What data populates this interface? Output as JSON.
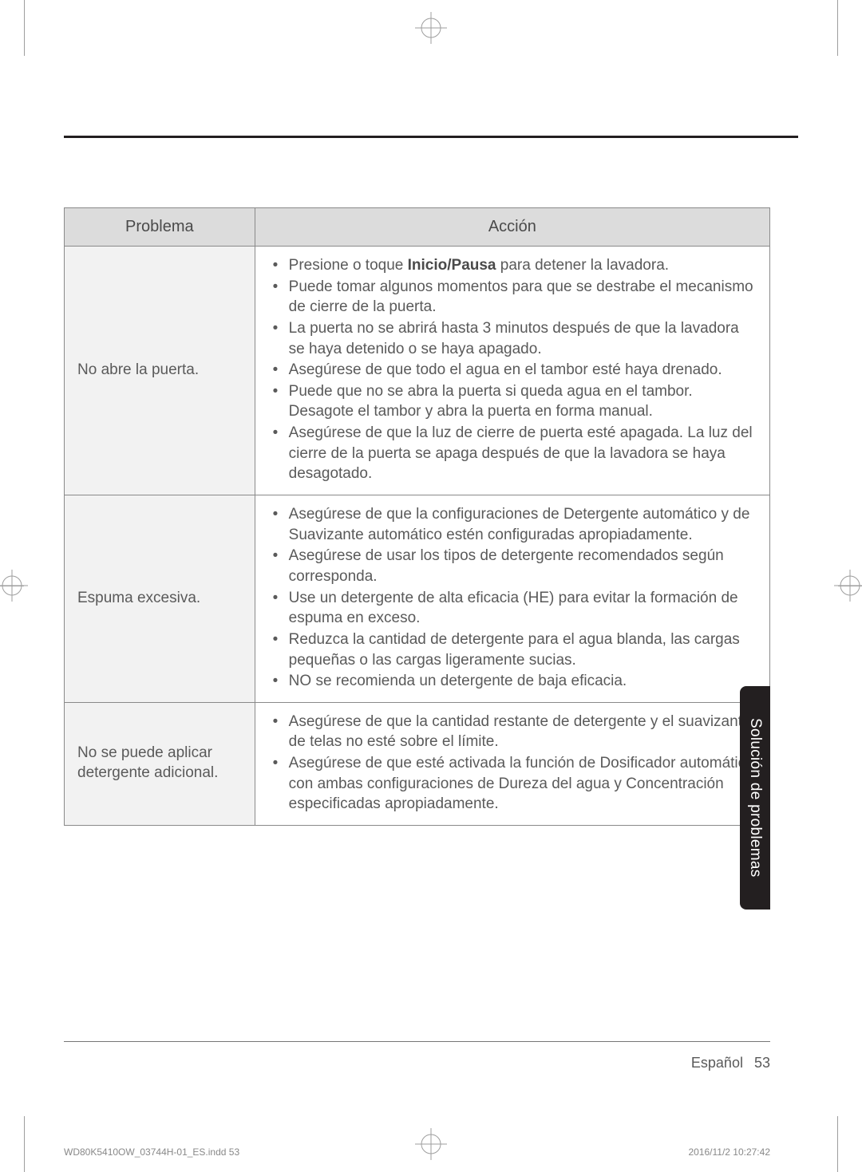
{
  "table": {
    "headers": {
      "problema": "Problema",
      "accion": "Acción"
    },
    "rows": [
      {
        "problem": "No abre la puerta.",
        "actions": [
          {
            "pre": "Presione o toque ",
            "bold": "Inicio/Pausa",
            "post": " para detener la lavadora."
          },
          {
            "text": "Puede tomar algunos momentos para que se destrabe el mecanismo de cierre de la puerta."
          },
          {
            "text": "La puerta no se abrirá hasta 3 minutos después de que la lavadora se haya detenido o se haya apagado."
          },
          {
            "text": "Asegúrese de que todo el agua en el tambor esté haya drenado."
          },
          {
            "text": "Puede que no se abra la puerta si queda agua en el tambor. Desagote el tambor y abra la puerta en forma manual."
          },
          {
            "text": "Asegúrese de que la luz de cierre de puerta esté apagada. La luz del cierre de la puerta se apaga después de que la lavadora se haya desagotado."
          }
        ]
      },
      {
        "problem": "Espuma excesiva.",
        "actions": [
          {
            "text": "Asegúrese de que la configuraciones de Detergente automático y de Suavizante automático estén configuradas apropiadamente."
          },
          {
            "text": "Asegúrese de usar los tipos de detergente recomendados según corresponda."
          },
          {
            "text": "Use un detergente de alta eficacia (HE) para evitar la formación de espuma en exceso."
          },
          {
            "text": "Reduzca la cantidad de detergente para el agua blanda, las cargas pequeñas o las cargas ligeramente sucias."
          },
          {
            "text": "NO se recomienda un detergente de baja eficacia."
          }
        ]
      },
      {
        "problem": "No se puede aplicar detergente adicional.",
        "actions": [
          {
            "text": "Asegúrese de que la cantidad restante de detergente y el suavizante de telas no esté sobre el límite."
          },
          {
            "text": "Asegúrese de que esté activada la función de Dosificador automático con ambas configuraciones de Dureza del agua y Concentración especificadas apropiadamente."
          }
        ]
      }
    ]
  },
  "side_tab": "Solución de problemas",
  "footer": {
    "language": "Español",
    "page_number": "53",
    "indd": "WD80K5410OW_03744H-01_ES.indd   53",
    "timestamp": "2016/11/2   10:27:42"
  }
}
